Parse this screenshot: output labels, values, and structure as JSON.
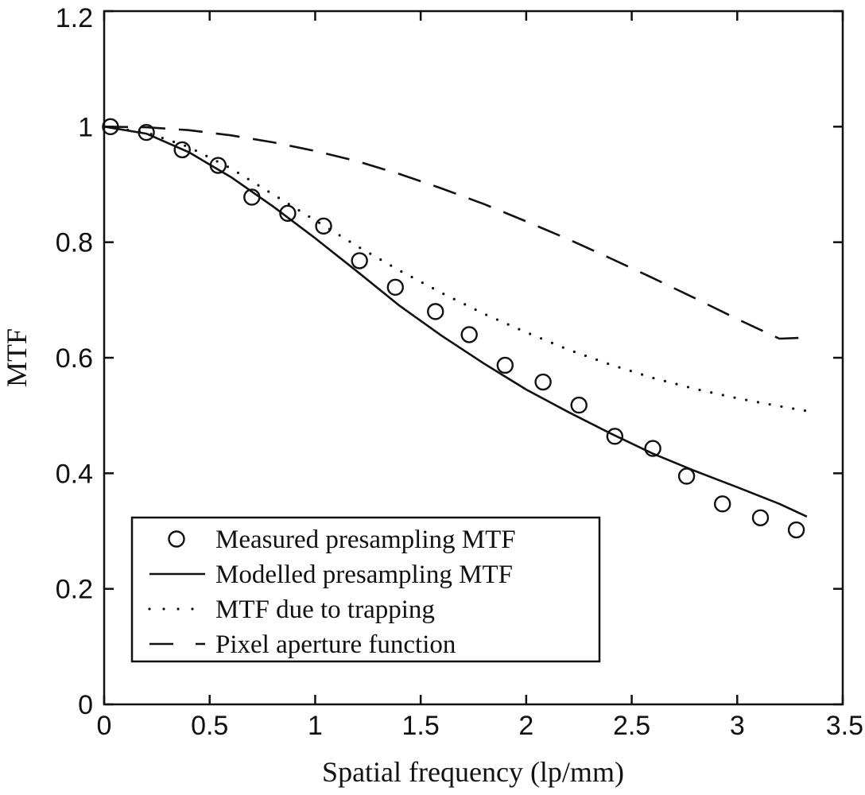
{
  "chart_data": {
    "type": "line",
    "title": "",
    "xlabel": "Spatial frequency (lp/mm)",
    "ylabel": "MTF",
    "xlim": [
      0,
      3.5
    ],
    "ylim": [
      0,
      1.2
    ],
    "xticks": [
      0,
      0.5,
      1,
      1.5,
      2,
      2.5,
      3,
      3.5
    ],
    "xtick_labels": [
      "0",
      "0.5",
      "1",
      "1.5",
      "2",
      "2.5",
      "3",
      "3.5"
    ],
    "yticks": [
      0,
      0.2,
      0.4,
      0.6,
      0.8,
      1.0,
      1.2
    ],
    "ytick_labels": [
      "0",
      "0.2",
      "0.4",
      "0.6",
      "0.8",
      "1",
      "1.2"
    ],
    "grid": false,
    "legend_position": "bottom-left",
    "series": [
      {
        "name": "Measured presampling MTF",
        "style": "circle-markers",
        "x": [
          0.03,
          0.2,
          0.37,
          0.54,
          0.7,
          0.87,
          1.04,
          1.21,
          1.38,
          1.57,
          1.73,
          1.9,
          2.08,
          2.25,
          2.42,
          2.6,
          2.76,
          2.93,
          3.11,
          3.28
        ],
        "y": [
          1.0,
          0.99,
          0.96,
          0.933,
          0.878,
          0.85,
          0.828,
          0.768,
          0.722,
          0.68,
          0.64,
          0.587,
          0.558,
          0.518,
          0.464,
          0.443,
          0.395,
          0.347,
          0.323,
          0.302
        ]
      },
      {
        "name": "Modelled presampling MTF",
        "style": "solid",
        "x": [
          0.0,
          0.2,
          0.4,
          0.6,
          0.8,
          1.0,
          1.2,
          1.4,
          1.6,
          1.8,
          2.0,
          2.2,
          2.4,
          2.6,
          2.8,
          3.0,
          3.2,
          3.33
        ],
        "y": [
          1.0,
          0.988,
          0.956,
          0.913,
          0.862,
          0.807,
          0.749,
          0.69,
          0.638,
          0.59,
          0.545,
          0.506,
          0.469,
          0.434,
          0.404,
          0.376,
          0.347,
          0.325
        ]
      },
      {
        "name": "MTF due to trapping",
        "style": "dotted",
        "x": [
          0.0,
          0.2,
          0.4,
          0.6,
          0.8,
          1.0,
          1.2,
          1.4,
          1.6,
          1.8,
          2.0,
          2.2,
          2.4,
          2.6,
          2.8,
          3.0,
          3.2,
          3.33
        ],
        "y": [
          1.0,
          0.99,
          0.965,
          0.928,
          0.883,
          0.838,
          0.793,
          0.751,
          0.712,
          0.676,
          0.644,
          0.614,
          0.588,
          0.565,
          0.546,
          0.53,
          0.516,
          0.508
        ]
      },
      {
        "name": "Pixel aperture function",
        "style": "dashed",
        "x": [
          0.0,
          0.2,
          0.4,
          0.6,
          0.8,
          1.0,
          1.2,
          1.4,
          1.6,
          1.8,
          2.0,
          2.2,
          2.4,
          2.6,
          2.8,
          3.0,
          3.2,
          3.33
        ],
        "y": [
          1.0,
          0.999,
          0.994,
          0.985,
          0.973,
          0.958,
          0.94,
          0.918,
          0.893,
          0.866,
          0.836,
          0.805,
          0.772,
          0.738,
          0.703,
          0.667,
          0.633,
          0.635
        ]
      }
    ]
  }
}
